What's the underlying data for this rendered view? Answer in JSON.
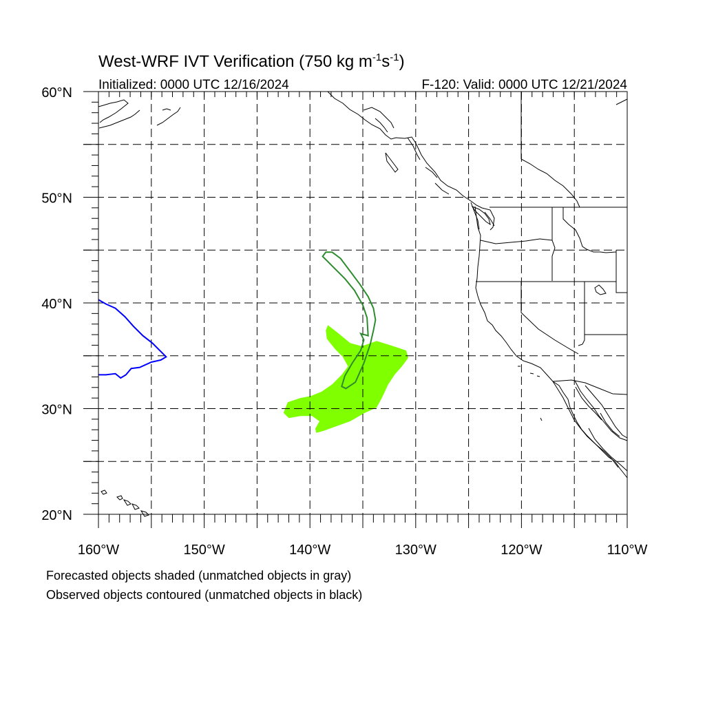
{
  "title": "West-WRF IVT Verification (750 kg m",
  "title_sup1": "-1",
  "title_mid": "s",
  "title_sup2": "-1",
  "title_end": ")",
  "initialized": "Initialized: 0000 UTC 12/16/2024",
  "valid": "F-120: Valid: 0000 UTC 12/21/2024",
  "footnotes": [
    "Forecasted objects shaded (unmatched objects in gray)",
    "Observed objects contoured (unmatched objects in black)"
  ],
  "map": {
    "lon_range": [
      -160,
      -110
    ],
    "lat_range": [
      20,
      60
    ],
    "lat_labels": [
      {
        "lat": 60,
        "text": "60°N"
      },
      {
        "lat": 50,
        "text": "50°N"
      },
      {
        "lat": 40,
        "text": "40°N"
      },
      {
        "lat": 30,
        "text": "30°N"
      },
      {
        "lat": 20,
        "text": "20°N"
      }
    ],
    "lon_labels": [
      {
        "lon": -160,
        "text": "160°W"
      },
      {
        "lon": -150,
        "text": "150°W"
      },
      {
        "lon": -140,
        "text": "140°W"
      },
      {
        "lon": -130,
        "text": "130°W"
      },
      {
        "lon": -120,
        "text": "120°W"
      },
      {
        "lon": -110,
        "text": "110°W"
      }
    ],
    "grid_lons": [
      -155,
      -150,
      -145,
      -140,
      -135,
      -130,
      -125,
      -120,
      -115
    ],
    "grid_lats": [
      55,
      50,
      45,
      40,
      35,
      30,
      25
    ],
    "colors": {
      "forecast_fill": "#7fff00",
      "observed_matched": "#2e8b2e",
      "observed_unmatched_blue": "#0000ff"
    },
    "forecast_object": [
      [
        -138.3,
        37.9
      ],
      [
        -137.4,
        37.2
      ],
      [
        -136.2,
        36.2
      ],
      [
        -135.1,
        35.9
      ],
      [
        -133.7,
        36.4
      ],
      [
        -132.1,
        35.9
      ],
      [
        -130.9,
        35.5
      ],
      [
        -130.7,
        34.8
      ],
      [
        -131.3,
        34.0
      ],
      [
        -132.0,
        33.2
      ],
      [
        -132.6,
        32.3
      ],
      [
        -133.2,
        31.0
      ],
      [
        -133.7,
        30.1
      ],
      [
        -134.8,
        29.6
      ],
      [
        -136.2,
        28.8
      ],
      [
        -137.6,
        28.3
      ],
      [
        -138.7,
        27.9
      ],
      [
        -139.4,
        27.7
      ],
      [
        -139.5,
        28.1
      ],
      [
        -139.1,
        28.8
      ],
      [
        -139.8,
        29.3
      ],
      [
        -140.9,
        29.3
      ],
      [
        -142.0,
        29.1
      ],
      [
        -142.5,
        29.6
      ],
      [
        -142.1,
        30.6
      ],
      [
        -140.9,
        31.0
      ],
      [
        -139.9,
        31.2
      ],
      [
        -138.9,
        31.6
      ],
      [
        -137.9,
        32.3
      ],
      [
        -137.0,
        33.2
      ],
      [
        -136.4,
        34.0
      ],
      [
        -136.9,
        34.9
      ],
      [
        -137.6,
        35.6
      ],
      [
        -138.4,
        36.6
      ],
      [
        -138.5,
        37.4
      ]
    ],
    "observed_object": [
      [
        -138.8,
        44.4
      ],
      [
        -138.5,
        44.8
      ],
      [
        -137.9,
        44.8
      ],
      [
        -137.1,
        44.2
      ],
      [
        -136.2,
        43.0
      ],
      [
        -135.3,
        41.8
      ],
      [
        -134.5,
        40.6
      ],
      [
        -134.0,
        39.5
      ],
      [
        -133.8,
        38.4
      ],
      [
        -134.0,
        37.4
      ],
      [
        -134.3,
        36.1
      ],
      [
        -134.9,
        34.3
      ],
      [
        -135.7,
        32.5
      ],
      [
        -136.6,
        31.9
      ],
      [
        -137.0,
        32.1
      ],
      [
        -136.7,
        33.1
      ],
      [
        -136.0,
        34.3
      ],
      [
        -135.2,
        35.5
      ],
      [
        -134.9,
        36.5
      ],
      [
        -135.2,
        37.1
      ],
      [
        -134.5,
        36.9
      ],
      [
        -134.6,
        38.6
      ],
      [
        -135.0,
        39.8
      ],
      [
        -135.8,
        41.2
      ],
      [
        -136.7,
        42.3
      ],
      [
        -137.6,
        43.2
      ],
      [
        -138.4,
        44.0
      ]
    ],
    "observed_unmatched_line": [
      [
        -160.0,
        40.3
      ],
      [
        -159.3,
        39.9
      ],
      [
        -158.4,
        39.5
      ],
      [
        -157.5,
        38.7
      ],
      [
        -156.7,
        37.8
      ],
      [
        -155.8,
        36.9
      ],
      [
        -154.9,
        36.2
      ],
      [
        -154.1,
        35.4
      ],
      [
        -153.6,
        34.9
      ],
      [
        -154.1,
        34.6
      ],
      [
        -155.0,
        34.4
      ],
      [
        -156.1,
        33.9
      ],
      [
        -156.9,
        33.8
      ],
      [
        -157.4,
        33.2
      ],
      [
        -157.9,
        32.9
      ],
      [
        -158.4,
        33.3
      ],
      [
        -159.3,
        33.2
      ],
      [
        -160.0,
        33.2
      ]
    ]
  }
}
